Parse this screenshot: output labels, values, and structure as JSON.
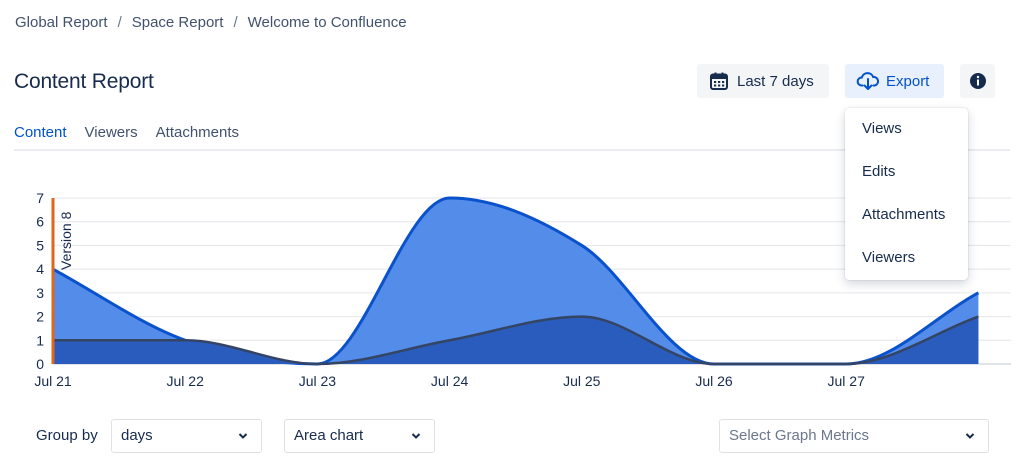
{
  "breadcrumb": {
    "items": [
      "Global Report",
      "Space Report",
      "Welcome to Confluence"
    ],
    "separator": "/"
  },
  "header": {
    "title": "Content Report",
    "date_range_label": "Last 7 days",
    "export_label": "Export"
  },
  "tabs": [
    "Content",
    "Viewers",
    "Attachments"
  ],
  "export_menu": [
    "Views",
    "Edits",
    "Attachments",
    "Viewers"
  ],
  "chart_data": {
    "type": "area",
    "categories": [
      "Jul 21",
      "Jul 22",
      "Jul 23",
      "Jul 24",
      "Jul 25",
      "Jul 26",
      "Jul 27",
      ""
    ],
    "y_ticks": [
      "0",
      "1",
      "2",
      "3",
      "4",
      "5",
      "6",
      "7"
    ],
    "ylim": [
      0,
      7
    ],
    "grid": true,
    "series": [
      {
        "values": [
          4,
          1,
          0,
          7,
          5,
          0,
          0,
          3
        ],
        "color": "#4a86e8"
      },
      {
        "values": [
          1,
          1,
          0,
          1,
          2,
          0,
          0,
          2
        ],
        "color": "#2a5cbd"
      }
    ],
    "annotation": {
      "label": "Version 8",
      "category": "Jul 21",
      "color": "#e0661b"
    }
  },
  "controls": {
    "group_by_label": "Group by",
    "group_by_value": "days",
    "chart_type_value": "Area chart",
    "metrics_placeholder": "Select Graph Metrics"
  }
}
